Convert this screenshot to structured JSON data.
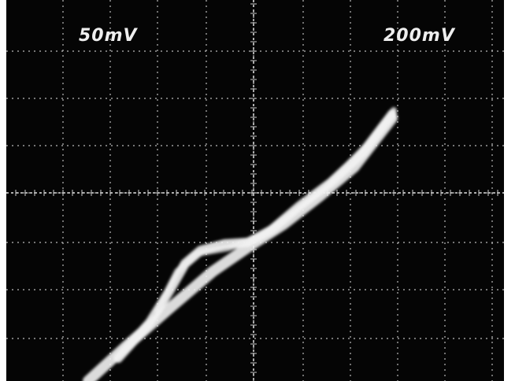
{
  "labels": {
    "left": "50mV",
    "right": "200mV"
  }
}
